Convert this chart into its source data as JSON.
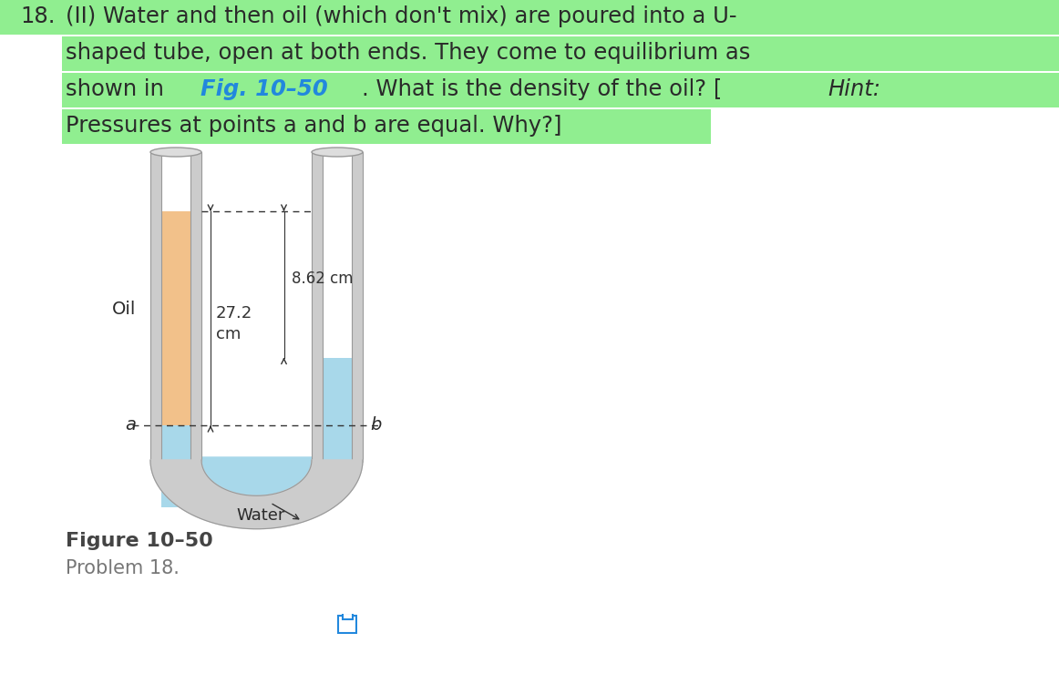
{
  "background_color": "#ffffff",
  "highlight_color": "#90EE90",
  "text_color": "#2a2a2a",
  "blue_text_color": "#2288DD",
  "oil_color_fill": "#F2C18A",
  "water_color_fill": "#A8D8EA",
  "tube_wall_color": "#CCCCCC",
  "tube_outline_color": "#999999",
  "tube_inner_color": "#E8E8E8",
  "dim_862": "8.62 cm",
  "dim_272_a": "27.2",
  "dim_272_b": "cm",
  "label_oil": "Oil",
  "label_water": "Water",
  "label_a": "a",
  "label_b": "b",
  "figure_label": "Figure 10–50",
  "problem_label": "Problem 18."
}
